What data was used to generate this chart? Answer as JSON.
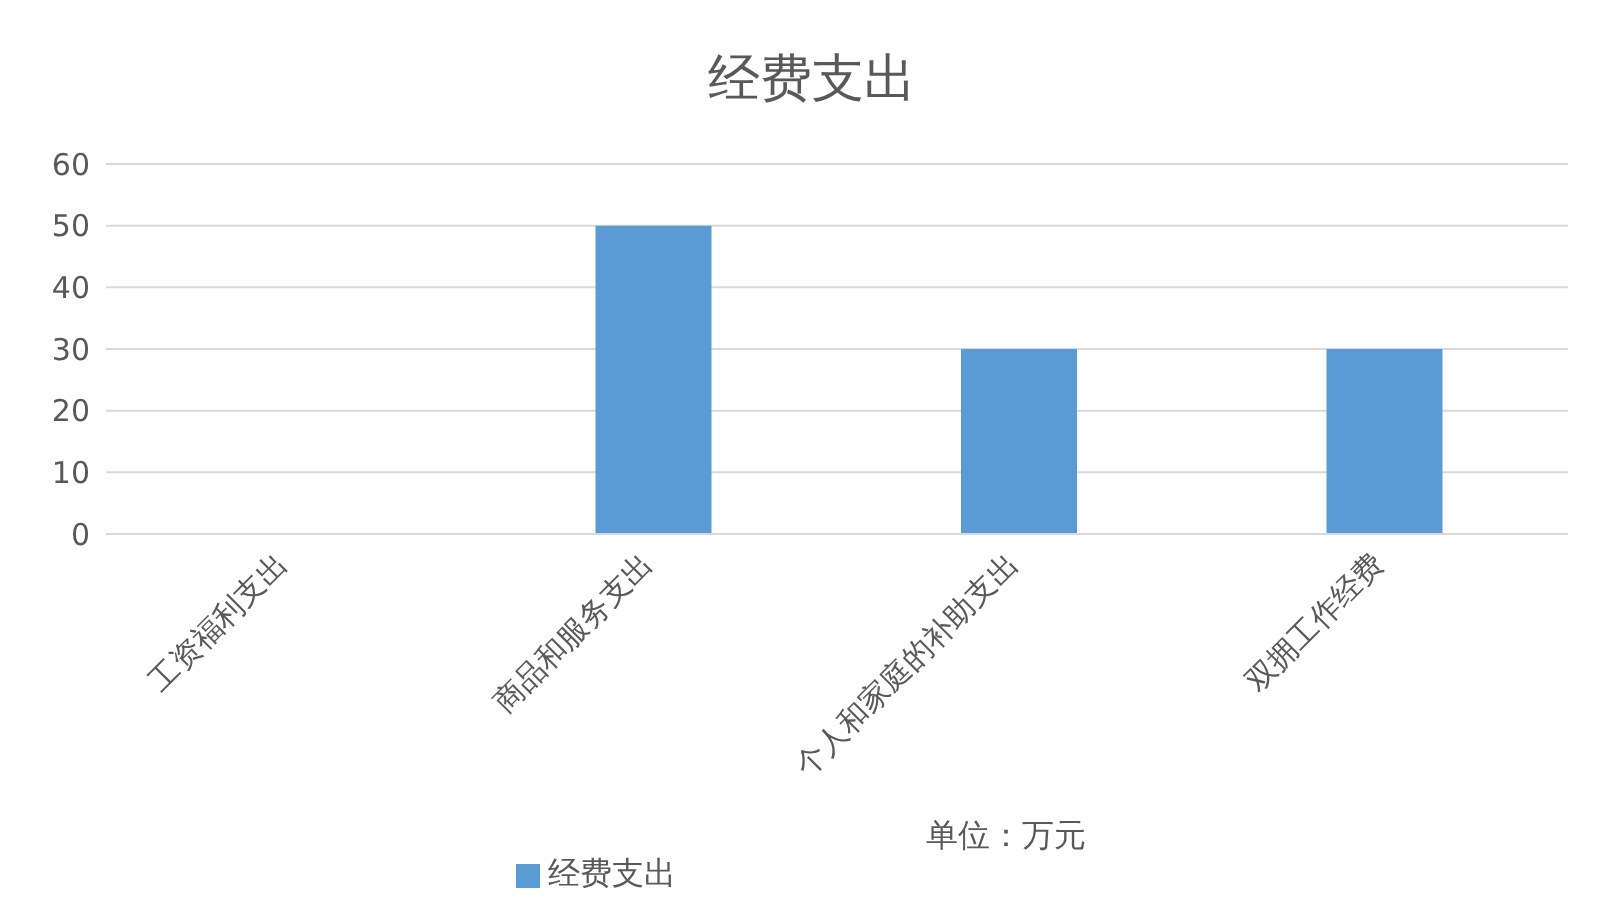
{
  "chart_data": {
    "type": "bar",
    "title": "经费支出",
    "categories": [
      "工资福利支出",
      "商品和服务支出",
      "个人和家庭的补助支出",
      "双拥工作经费"
    ],
    "series": [
      {
        "name": "经费支出",
        "color": "#5b9bd5",
        "values": [
          0,
          50,
          30,
          30
        ]
      }
    ],
    "ylim": [
      0,
      60
    ],
    "yticks": [
      0,
      10,
      20,
      30,
      40,
      50,
      60
    ],
    "grid": "y",
    "legend": "bottom",
    "annotations": [
      "单位：万元"
    ]
  }
}
